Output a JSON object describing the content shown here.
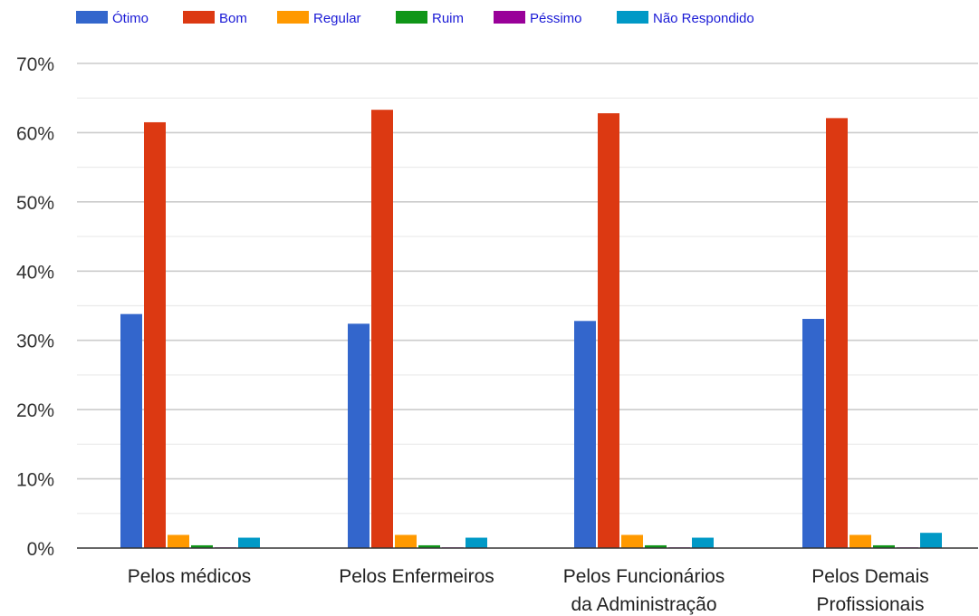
{
  "chart_data": {
    "type": "bar",
    "title": "",
    "xlabel": "",
    "ylabel": "",
    "ylim": [
      0,
      70
    ],
    "yticks": [
      "0%",
      "10%",
      "20%",
      "30%",
      "40%",
      "50%",
      "60%",
      "70%"
    ],
    "grid": true,
    "legend_position": "top-left",
    "categories": [
      [
        "Pelos médicos"
      ],
      [
        "Pelos Enfermeiros"
      ],
      [
        "Pelos Funcionários",
        "da Administração"
      ],
      [
        "Pelos Demais",
        "Profissionais"
      ]
    ],
    "series": [
      {
        "name": "Ótimo",
        "color": "#3366cc",
        "values": [
          33.8,
          32.4,
          32.8,
          33.1
        ]
      },
      {
        "name": "Bom",
        "color": "#dc3912",
        "values": [
          61.5,
          63.3,
          62.8,
          62.1
        ]
      },
      {
        "name": "Regular",
        "color": "#ff9900",
        "values": [
          1.9,
          1.9,
          1.9,
          1.9
        ]
      },
      {
        "name": "Ruim",
        "color": "#109618",
        "values": [
          0.4,
          0.4,
          0.4,
          0.4
        ]
      },
      {
        "name": "Péssimo",
        "color": "#990099",
        "values": [
          0.1,
          0.1,
          0.1,
          0.1
        ]
      },
      {
        "name": "Não Respondido",
        "color": "#0099c6",
        "values": [
          1.5,
          1.5,
          1.5,
          2.2
        ]
      }
    ]
  }
}
